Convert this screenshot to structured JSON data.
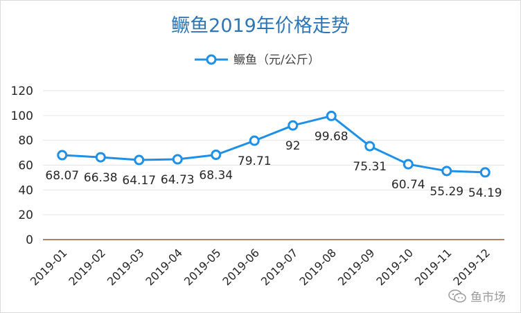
{
  "colors": {
    "series": "#1e90e8",
    "title": "#2e75b6",
    "axis_gradient": [
      "#c0392b",
      "#f1c40f",
      "#2e86de"
    ],
    "x_axis": "#a0522d"
  },
  "watermark": {
    "icon": "wechat-chat-icon",
    "text": "鱼市场"
  },
  "chart_data": {
    "type": "line",
    "title": "鳜鱼2019年价格走势",
    "xlabel": "",
    "ylabel": "",
    "categories": [
      "2019-01",
      "2019-02",
      "2019-03",
      "2019-04",
      "2019-05",
      "2019-06",
      "2019-07",
      "2019-08",
      "2019-09",
      "2019-10",
      "2019-11",
      "2019-12"
    ],
    "series": [
      {
        "name": "鳜鱼（元/公斤）",
        "values": [
          68.07,
          66.38,
          64.17,
          64.73,
          68.34,
          79.71,
          92,
          99.68,
          75.31,
          60.74,
          55.29,
          54.19
        ],
        "labels": [
          "68.07",
          "66.38",
          "64.17",
          "64.73",
          "68.34",
          "79.71",
          "92",
          "99.68",
          "75.31",
          "60.74",
          "55.29",
          "54.19"
        ]
      }
    ],
    "ylim": [
      0,
      120
    ],
    "yticks": [
      0,
      20,
      40,
      60,
      80,
      100,
      120
    ],
    "grid": true,
    "legend_position": "top-center",
    "markers": "hollow-circle"
  }
}
